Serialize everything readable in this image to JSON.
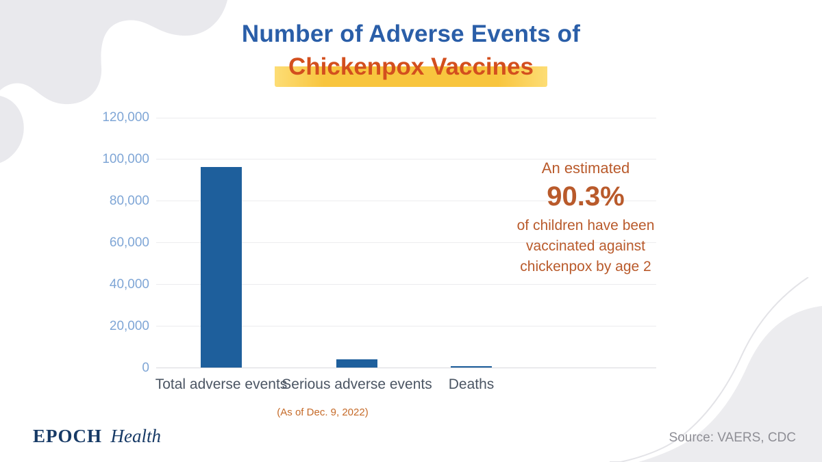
{
  "title": {
    "line1": "Number of Adverse Events of",
    "line2": "Chickenpox Vaccines"
  },
  "annotation": {
    "line1": "An estimated",
    "value": "90.3%",
    "line2": "of children have been",
    "line3": "vaccinated against",
    "line4": "chickenpox by age 2"
  },
  "footnote": "(As of Dec. 9, 2022)",
  "source": "Source: VAERS, CDC",
  "brand": {
    "epoch": "EPOCH",
    "health": "Health"
  },
  "colors": {
    "title_blue": "#2a5ea8",
    "title_orange": "#d34f1e",
    "highlight_yellow": "#f8c53e",
    "bar_blue": "#1e5f9c",
    "axis_label_blue": "#7fa6d6",
    "annotation_orange": "#b95a2b",
    "x_label_gray": "#4b5563",
    "source_gray": "#8e8e95",
    "brand_navy": "#173a66",
    "blob_gray": "#e9e9ed"
  },
  "chart_data": {
    "type": "bar",
    "title": "Number of Adverse Events of Chickenpox Vaccines",
    "categories": [
      "Total adverse events",
      "Serious adverse events",
      "Deaths"
    ],
    "values": [
      96000,
      4000,
      200
    ],
    "xlabel": "",
    "ylabel": "",
    "ylim": [
      0,
      120000
    ],
    "ytick_interval": 20000,
    "ytick_labels": [
      "0",
      "20,000",
      "40,000",
      "60,000",
      "80,000",
      "100,000",
      "120,000"
    ],
    "grid": true,
    "legend": false,
    "footnote": "(As of Dec. 9, 2022)"
  }
}
